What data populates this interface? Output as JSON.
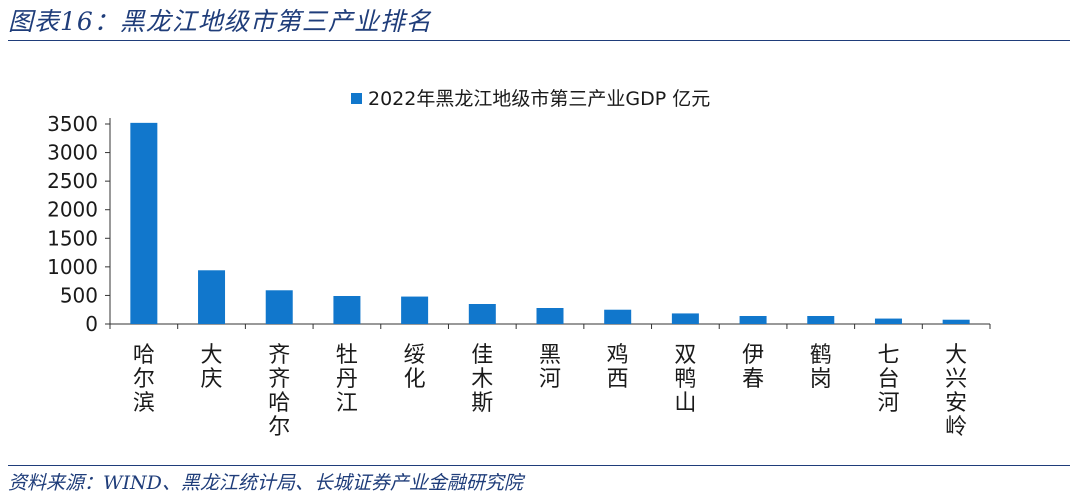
{
  "figure": {
    "title": "图表16：黑龙江地级市第三产业排名",
    "source": "资料来源：WIND、黑龙江统计局、长城证券产业金融研究院"
  },
  "chart_data": {
    "type": "bar",
    "title": "",
    "legend": "2022年黑龙江地级市第三产业GDP 亿元",
    "legend_position": "top",
    "categories": [
      "哈尔滨",
      "大庆",
      "齐齐哈尔",
      "牡丹江",
      "绥化",
      "佳木斯",
      "黑河",
      "鸡西",
      "双鸭山",
      "伊春",
      "鹤岗",
      "七台河",
      "大兴安岭"
    ],
    "values": [
      3520,
      940,
      590,
      490,
      480,
      350,
      280,
      250,
      185,
      140,
      140,
      95,
      75
    ],
    "ylim": [
      0,
      3500
    ],
    "yticks": [
      0,
      500,
      1000,
      1500,
      2000,
      2500,
      3000,
      3500
    ],
    "xlabel": "",
    "ylabel": "",
    "bar_color": "#1177cc",
    "grid": false
  }
}
